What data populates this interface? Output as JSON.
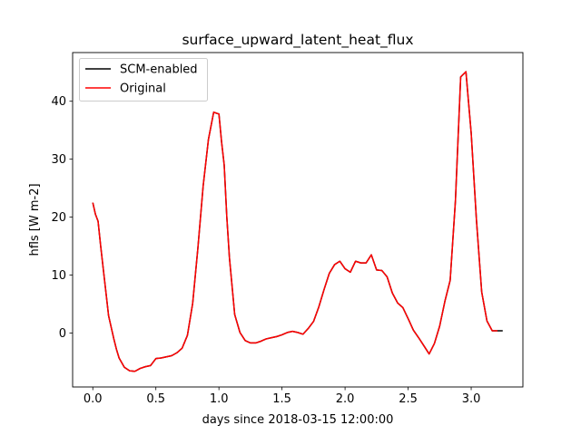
{
  "chart_data": {
    "type": "line",
    "title": "surface_upward_latent_heat_flux",
    "xlabel": "days since 2018-03-15 12:00:00",
    "ylabel": "hfls [W m-2]",
    "xlim": [
      -0.16,
      3.41
    ],
    "ylim": [
      -9.3,
      48.4
    ],
    "xticks": [
      0.0,
      0.5,
      1.0,
      1.5,
      2.0,
      2.5,
      3.0
    ],
    "xtick_labels": [
      "0.0",
      "0.5",
      "1.0",
      "1.5",
      "2.0",
      "2.5",
      "3.0"
    ],
    "yticks": [
      0,
      10,
      20,
      30,
      40
    ],
    "ytick_labels": [
      "0",
      "10",
      "20",
      "30",
      "40"
    ],
    "grid": false,
    "legend_position": "upper-left",
    "legend": [
      "SCM-enabled",
      "Original"
    ],
    "series": [
      {
        "name": "SCM-enabled",
        "color": "#000000",
        "x": [
          0.0,
          0.0208,
          0.0417,
          0.0625,
          0.0833,
          0.1042,
          0.125,
          0.1458,
          0.1667,
          0.1875,
          0.2083,
          0.25,
          0.2917,
          0.3333,
          0.375,
          0.4167,
          0.4583,
          0.5,
          0.5417,
          0.5833,
          0.625,
          0.6667,
          0.7083,
          0.75,
          0.7917,
          0.8333,
          0.875,
          0.9167,
          0.9583,
          1.0,
          1.0208,
          1.0417,
          1.0625,
          1.0833,
          1.125,
          1.1667,
          1.2083,
          1.25,
          1.2917,
          1.3333,
          1.375,
          1.4167,
          1.4583,
          1.5,
          1.5417,
          1.5833,
          1.625,
          1.6667,
          1.7083,
          1.75,
          1.7917,
          1.8333,
          1.875,
          1.9167,
          1.9583,
          2.0,
          2.0417,
          2.0833,
          2.125,
          2.1667,
          2.2083,
          2.25,
          2.2917,
          2.3333,
          2.375,
          2.4167,
          2.4583,
          2.5,
          2.5417,
          2.5833,
          2.625,
          2.6667,
          2.7083,
          2.75,
          2.7917,
          2.8333,
          2.875,
          2.9167,
          2.9583,
          3.0,
          3.0417,
          3.0833,
          3.125,
          3.1667,
          3.2083,
          3.25
        ],
        "y": [
          22.5,
          20.5,
          19.3,
          15.0,
          11.0,
          7.0,
          3.0,
          1.0,
          -1.0,
          -2.8,
          -4.3,
          -5.9,
          -6.5,
          -6.6,
          -6.1,
          -5.8,
          -5.6,
          -4.4,
          -4.3,
          -4.1,
          -3.9,
          -3.4,
          -2.6,
          -0.4,
          5.1,
          14.7,
          25.4,
          33.4,
          38.1,
          37.8,
          33.0,
          29.0,
          20.0,
          13.0,
          3.2,
          0.1,
          -1.3,
          -1.7,
          -1.7,
          -1.4,
          -1.0,
          -0.8,
          -0.6,
          -0.3,
          0.1,
          0.3,
          0.1,
          -0.2,
          0.8,
          2.0,
          4.5,
          7.5,
          10.3,
          11.8,
          12.4,
          11.1,
          10.5,
          12.4,
          12.1,
          12.1,
          13.5,
          10.9,
          10.8,
          9.7,
          6.9,
          5.2,
          4.4,
          2.5,
          0.5,
          -0.8,
          -2.2,
          -3.6,
          -1.8,
          1.2,
          5.5,
          9.1,
          22.8,
          44.2,
          45.1,
          34.5,
          19.5,
          7.1,
          2.1,
          0.4,
          0.4,
          0.4
        ]
      },
      {
        "name": "Original",
        "color": "#ff0000",
        "x": [
          0.0,
          0.0208,
          0.0417,
          0.0625,
          0.0833,
          0.1042,
          0.125,
          0.1458,
          0.1667,
          0.1875,
          0.2083,
          0.25,
          0.2917,
          0.3333,
          0.375,
          0.4167,
          0.4583,
          0.5,
          0.5417,
          0.5833,
          0.625,
          0.6667,
          0.7083,
          0.75,
          0.7917,
          0.8333,
          0.875,
          0.9167,
          0.9583,
          1.0,
          1.0208,
          1.0417,
          1.0625,
          1.0833,
          1.125,
          1.1667,
          1.2083,
          1.25,
          1.2917,
          1.3333,
          1.375,
          1.4167,
          1.4583,
          1.5,
          1.5417,
          1.5833,
          1.625,
          1.6667,
          1.7083,
          1.75,
          1.7917,
          1.8333,
          1.875,
          1.9167,
          1.9583,
          2.0,
          2.0417,
          2.0833,
          2.125,
          2.1667,
          2.2083,
          2.25,
          2.2917,
          2.3333,
          2.375,
          2.4167,
          2.4583,
          2.5,
          2.5417,
          2.5833,
          2.625,
          2.6667,
          2.7083,
          2.75,
          2.7917,
          2.8333,
          2.875,
          2.9167,
          2.9583,
          3.0,
          3.0417,
          3.0833,
          3.125,
          3.1667,
          3.2083
        ],
        "y": [
          22.5,
          20.5,
          19.3,
          15.0,
          11.0,
          7.0,
          3.0,
          1.0,
          -1.0,
          -2.8,
          -4.3,
          -5.9,
          -6.5,
          -6.6,
          -6.1,
          -5.8,
          -5.6,
          -4.4,
          -4.3,
          -4.1,
          -3.9,
          -3.4,
          -2.6,
          -0.4,
          5.1,
          14.7,
          25.4,
          33.4,
          38.1,
          37.8,
          33.0,
          29.0,
          20.0,
          13.0,
          3.2,
          0.1,
          -1.3,
          -1.7,
          -1.7,
          -1.4,
          -1.0,
          -0.8,
          -0.6,
          -0.3,
          0.1,
          0.3,
          0.1,
          -0.2,
          0.8,
          2.0,
          4.5,
          7.5,
          10.3,
          11.8,
          12.4,
          11.1,
          10.5,
          12.4,
          12.1,
          12.1,
          13.5,
          10.9,
          10.8,
          9.7,
          6.9,
          5.2,
          4.4,
          2.5,
          0.5,
          -0.8,
          -2.2,
          -3.6,
          -1.8,
          1.2,
          5.5,
          9.1,
          22.8,
          44.2,
          45.1,
          34.5,
          19.5,
          7.1,
          2.1,
          0.4,
          0.4
        ]
      }
    ]
  }
}
